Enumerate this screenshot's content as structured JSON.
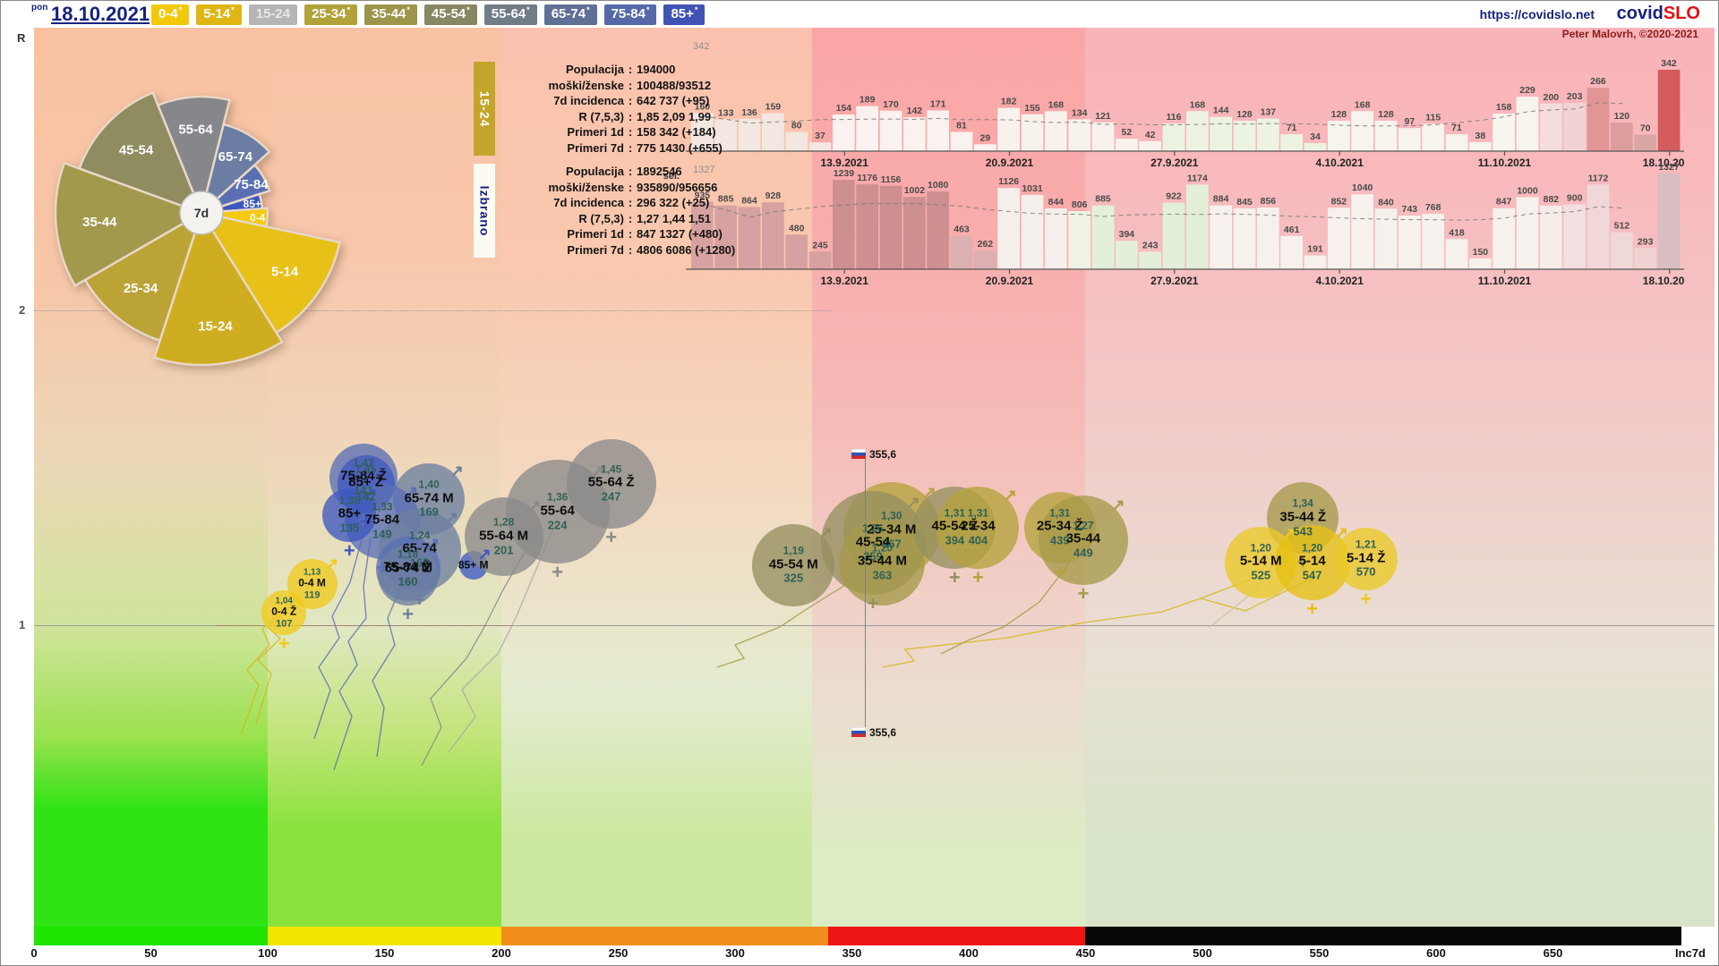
{
  "header": {
    "weekday": "pon",
    "date": "18.10.2021",
    "url": "https://covidslo.net",
    "logo_covid": "covid",
    "logo_slo": "SLO",
    "credit": "Peter Malovrh, ©2020-2021",
    "buttons": [
      {
        "label": "0-4",
        "star": true,
        "bg": "#f2c80c",
        "fg": "#ffffff",
        "selected": false
      },
      {
        "label": "5-14",
        "star": true,
        "bg": "#dfb614",
        "fg": "#ffffff",
        "selected": false
      },
      {
        "label": "15-24",
        "star": false,
        "bg": "#b5b5b5",
        "fg": "#e8e8e8",
        "selected": true
      },
      {
        "label": "25-34",
        "star": true,
        "bg": "#b1a23a",
        "fg": "#ffffff",
        "selected": false
      },
      {
        "label": "35-44",
        "star": true,
        "bg": "#9d9549",
        "fg": "#ffffff",
        "selected": false
      },
      {
        "label": "45-54",
        "star": true,
        "bg": "#878763",
        "fg": "#ffffff",
        "selected": false
      },
      {
        "label": "55-64",
        "star": true,
        "bg": "#717c86",
        "fg": "#ffffff",
        "selected": false
      },
      {
        "label": "65-74",
        "star": true,
        "bg": "#5f7097",
        "fg": "#ffffff",
        "selected": false
      },
      {
        "label": "75-84",
        "star": true,
        "bg": "#5569a8",
        "fg": "#ffffff",
        "selected": false
      },
      {
        "label": "85+",
        "star": true,
        "bg": "#4053b5",
        "fg": "#ffffff",
        "selected": false
      }
    ]
  },
  "axes": {
    "y_label": "R",
    "y_ticks": [
      "2",
      "1"
    ],
    "x_unit_label": "Inc7d",
    "x_ticks": [
      0,
      50,
      100,
      150,
      200,
      250,
      300,
      350,
      400,
      450,
      500,
      550,
      600,
      650
    ]
  },
  "info_panels": [
    {
      "tag": "15-24",
      "tag_bg": "#c3a52c",
      "tag_fg": "#ffffff",
      "rows": [
        {
          "label": "Populacija",
          "value": "194000"
        },
        {
          "label": "moški/ženske",
          "value": "100488/93512"
        },
        {
          "label": "7d incidenca",
          "value": "642 737 (+95)"
        },
        {
          "label": "R (7,5,3)",
          "value": "1,85 2,09 1,99"
        },
        {
          "label": "Primeri 1d",
          "value": "158 342 (+184)"
        },
        {
          "label": "Primeri 7d",
          "value": "775 1430 (+655)"
        }
      ]
    },
    {
      "tag": "Izbrano",
      "tag_bg": "#fbfbf2",
      "tag_fg": "#16227e",
      "rows": [
        {
          "label": "Populacija",
          "value": "1892546"
        },
        {
          "label": "moški/ženske",
          "value": "935890/956656"
        },
        {
          "label": "7d incidenca",
          "value": "296 322 (+25)"
        },
        {
          "label": "R (7,5,3)",
          "value": "1,27 1,44 1,51"
        },
        {
          "label": "Primeri 1d",
          "value": "847 1327 (+480)"
        },
        {
          "label": "Primeri 7d",
          "value": "4806 6086 (+1280)"
        }
      ]
    }
  ],
  "fan": {
    "center_label": "7d",
    "wedges": [
      {
        "label": "55-64",
        "a0": -22,
        "a1": 14,
        "r": 130,
        "lf": 0.72,
        "color": "#85878a"
      },
      {
        "label": "65-74",
        "a0": 14,
        "a1": 48,
        "r": 102,
        "lf": 0.72,
        "color": "#6b7da3"
      },
      {
        "label": "75-84",
        "a0": 48,
        "a1": 72,
        "r": 80,
        "lf": 0.8,
        "color": "#5a6fb3"
      },
      {
        "label": "85+",
        "a0": 72,
        "a1": 86,
        "r": 68,
        "lf": 0.85,
        "color": "#3d57c0"
      },
      {
        "label": "0-4",
        "a0": 86,
        "a1": 102,
        "r": 74,
        "lf": 0.85,
        "color": "#f5c90d"
      },
      {
        "label": "5-14",
        "a0": 102,
        "a1": 148,
        "r": 158,
        "lf": 0.72,
        "color": "#e7c117"
      },
      {
        "label": "15-24",
        "a0": 148,
        "a1": 198,
        "r": 170,
        "lf": 0.75,
        "color": "#cfad20"
      },
      {
        "label": "25-34",
        "a0": 198,
        "a1": 240,
        "r": 150,
        "lf": 0.72,
        "color": "#bba336"
      },
      {
        "label": "35-44",
        "a0": 240,
        "a1": 290,
        "r": 163,
        "lf": 0.7,
        "color": "#a3994d"
      },
      {
        "label": "45-54",
        "a0": 290,
        "a1": 338,
        "r": 145,
        "lf": 0.7,
        "color": "#8f8c60"
      }
    ]
  },
  "chart_data": [
    {
      "type": "bar",
      "name": "daily-cases-15-24",
      "max_label": "342",
      "dates": [
        "13.9.2021",
        "20.9.2021",
        "27.9.2021",
        "4.10.2021",
        "11.10.2021",
        "18.10.2021"
      ],
      "values": [
        160,
        133,
        136,
        159,
        80,
        37,
        154,
        189,
        170,
        142,
        171,
        81,
        29,
        182,
        155,
        168,
        134,
        121,
        52,
        42,
        116,
        168,
        144,
        128,
        137,
        71,
        34,
        128,
        168,
        128,
        97,
        115,
        71,
        38,
        158,
        229,
        200,
        203,
        266,
        120,
        70,
        342
      ],
      "colors": [
        "#f2e7e1",
        "#f2e7e1",
        "#f2e7e1",
        "#f2e7e1",
        "#f2e7e1",
        "#f2e7e1",
        "#f9f2ee",
        "#f9f2ee",
        "#f9f2ee",
        "#f9f2ee",
        "#f9f2ee",
        "#f9f2ee",
        "#f9f2ee",
        "#f8f2ec",
        "#f8f2ec",
        "#f8f2ec",
        "#f8f2ec",
        "#f8f2ec",
        "#f8f2ec",
        "#f8f2ec",
        "#edf3e3",
        "#edf3e3",
        "#edf3e3",
        "#edf3e3",
        "#edf3e3",
        "#edf3e3",
        "#edf3e3",
        "#f7f3ed",
        "#f7f3ed",
        "#f7f3ed",
        "#f7f3ed",
        "#f7f3ed",
        "#f7f3ed",
        "#f7f3ed",
        "#f8f4ee",
        "#f7f3ed",
        "#f4dddb",
        "#f1d3d3",
        "#e29595",
        "#de9d9d",
        "#daa5a5",
        "#d35b5b"
      ]
    },
    {
      "type": "bar",
      "name": "daily-cases-selected",
      "max_label": "1327",
      "note": "sel.",
      "dates": [
        "13.9.2021",
        "20.9.2021",
        "27.9.2021",
        "4.10.2021",
        "11.10.2021",
        "18.10.2021"
      ],
      "values": [
        935,
        885,
        864,
        928,
        480,
        245,
        1239,
        1176,
        1156,
        1002,
        1080,
        463,
        262,
        1126,
        1031,
        844,
        806,
        885,
        394,
        243,
        922,
        1174,
        884,
        845,
        856,
        461,
        191,
        852,
        1040,
        840,
        743,
        768,
        418,
        150,
        847,
        1000,
        882,
        900,
        1172,
        512,
        293,
        1327
      ],
      "colors": [
        "#d7a1a1",
        "#d7a1a1",
        "#d7a1a1",
        "#d7a1a1",
        "#d7a1a1",
        "#d7a1a1",
        "#cd8f8f",
        "#cd8f8f",
        "#cd8f8f",
        "#cd8f8f",
        "#cd8f8f",
        "#dcb0b0",
        "#dcb0b0",
        "#f5efeb",
        "#f5efeb",
        "#f5efeb",
        "#f0f2e6",
        "#e4efda",
        "#e4efda",
        "#e4efda",
        "#e4efda",
        "#e4efda",
        "#f6f1ec",
        "#f6f1ec",
        "#f6f1ec",
        "#f6f1ec",
        "#f6f1ec",
        "#f6f1ec",
        "#f6f1ec",
        "#f6f1ec",
        "#f6f1ec",
        "#f6f1ec",
        "#f6f1ec",
        "#f6f1ec",
        "#f6f1ec",
        "#f6f1ec",
        "#f5ece9",
        "#f2dfdf",
        "#f1d8d8",
        "#f1d8d8",
        "#f0d4d4",
        "#d8bdc1"
      ]
    },
    {
      "type": "scatter",
      "name": "r-vs-7d-incidence",
      "xlabel": "Inc7d",
      "ylabel": "R",
      "reference_marker": {
        "label": "355,6",
        "inc": 355.6
      },
      "bubbles": [
        {
          "name": "75-84 Ž",
          "r": "1,47",
          "value": "141",
          "r_num": 1.47,
          "inc": 141,
          "radius": 38,
          "color": "#5a70b6",
          "marker": "f"
        },
        {
          "name": "85+ Ž",
          "r": "1,45",
          "value": "142",
          "r_num": 1.45,
          "inc": 142,
          "radius": 32,
          "color": "#4058bf",
          "marker": "f"
        },
        {
          "name": "65-74 M",
          "r": "1,40",
          "value": "169",
          "r_num": 1.4,
          "inc": 169,
          "radius": 40,
          "color": "#6d7fa0",
          "marker": "m"
        },
        {
          "name": "75-84",
          "r": "1,33",
          "value": "149",
          "r_num": 1.33,
          "inc": 149,
          "radius": 42,
          "color": "#5a70b6",
          "marker": "mf"
        },
        {
          "name": "85+",
          "r": "1,35",
          "value": "135",
          "r_num": 1.35,
          "inc": 135,
          "radius": 30,
          "color": "#3f57c0",
          "marker": "mf"
        },
        {
          "name": "65-74",
          "r": "1,24",
          "value": "165",
          "r_num": 1.24,
          "inc": 165,
          "radius": 46,
          "color": "#6d7fa0",
          "marker": "mf"
        },
        {
          "name": "75-84 M",
          "r": "1,18",
          "value": "160",
          "r_num": 1.18,
          "inc": 160,
          "radius": 36,
          "color": "#5a70b6",
          "marker": "m"
        },
        {
          "name": "65-74 Ž",
          "r": "",
          "value": "160",
          "r_num": 1.16,
          "inc": 160,
          "radius": 34,
          "color": "#6d7fa0",
          "marker": "f"
        },
        {
          "name": "85+ M",
          "r": "",
          "value": "",
          "r_num": 1.19,
          "inc": 188,
          "radius": 16,
          "color": "#3f57c0",
          "marker": "m",
          "small": true
        },
        {
          "name": "55-64 M",
          "r": "1,28",
          "value": "201",
          "r_num": 1.28,
          "inc": 201,
          "radius": 44,
          "color": "#8a8a8a",
          "marker": "m"
        },
        {
          "name": "55-64",
          "r": "1,36",
          "value": "224",
          "r_num": 1.36,
          "inc": 224,
          "radius": 58,
          "color": "#8a8a8a",
          "marker": "mf"
        },
        {
          "name": "55-64 Ž",
          "r": "1,45",
          "value": "247",
          "r_num": 1.45,
          "inc": 247,
          "radius": 50,
          "color": "#8a8a8a",
          "marker": "f"
        },
        {
          "name": "25-34 M",
          "r": "1,30",
          "value": "367",
          "r_num": 1.3,
          "inc": 367,
          "radius": 54,
          "color": "#b5a33c",
          "marker": "m"
        },
        {
          "name": "45-54 M",
          "r": "1,19",
          "value": "325",
          "r_num": 1.19,
          "inc": 325,
          "radius": 46,
          "color": "#95905f",
          "marker": "m"
        },
        {
          "name": "45-54",
          "r": "1,26",
          "value": "359",
          "r_num": 1.26,
          "inc": 359,
          "radius": 58,
          "color": "#95905f",
          "marker": "mf"
        },
        {
          "name": "35-44 M",
          "r": "1,20",
          "value": "363",
          "r_num": 1.2,
          "inc": 363,
          "radius": 48,
          "color": "#a59a4a",
          "marker": "m"
        },
        {
          "name": "45-54 Ž",
          "r": "1,31",
          "value": "394",
          "r_num": 1.31,
          "inc": 394,
          "radius": 46,
          "color": "#95905f",
          "marker": "f"
        },
        {
          "name": "25-34",
          "r": "1,31",
          "value": "404",
          "r_num": 1.31,
          "inc": 404,
          "radius": 46,
          "color": "#b5a33c",
          "marker": "mf"
        },
        {
          "name": "25-34 Ž",
          "r": "1,31",
          "value": "439",
          "r_num": 1.31,
          "inc": 439,
          "radius": 40,
          "color": "#b5a33c",
          "marker": "f"
        },
        {
          "name": "35-44",
          "r": "1,27",
          "value": "449",
          "r_num": 1.27,
          "inc": 449,
          "radius": 50,
          "color": "#a59a4a",
          "marker": "mf"
        },
        {
          "name": "35-44 Ž",
          "r": "1,34",
          "value": "543",
          "r_num": 1.34,
          "inc": 543,
          "radius": 40,
          "color": "#a59a4a",
          "marker": "f"
        },
        {
          "name": "5-14 M",
          "r": "1,20",
          "value": "525",
          "r_num": 1.2,
          "inc": 525,
          "radius": 40,
          "color": "#eac926",
          "marker": "m"
        },
        {
          "name": "5-14",
          "r": "1,20",
          "value": "547",
          "r_num": 1.2,
          "inc": 547,
          "radius": 42,
          "color": "#e6c013",
          "marker": "mf"
        },
        {
          "name": "5-14 Ž",
          "r": "1,21",
          "value": "570",
          "r_num": 1.21,
          "inc": 570,
          "radius": 35,
          "color": "#eac926",
          "marker": "f"
        },
        {
          "name": "0-4 M",
          "r": "1,13",
          "value": "119",
          "r_num": 1.13,
          "inc": 119,
          "radius": 28,
          "color": "#f0ca1e",
          "marker": "m",
          "small": true
        },
        {
          "name": "0-4 Ž",
          "r": "1,04",
          "value": "107",
          "r_num": 1.04,
          "inc": 107,
          "radius": 25,
          "color": "#f0ca1e",
          "marker": "f",
          "small": true
        }
      ]
    }
  ],
  "colorbar": {
    "segments": [
      {
        "from": 0,
        "to": 100,
        "color": "#1ee400"
      },
      {
        "from": 100,
        "to": 200,
        "color": "#f2e600"
      },
      {
        "from": 200,
        "to": 340,
        "color": "#f08e1c"
      },
      {
        "from": 340,
        "to": 450,
        "color": "#ed1515"
      },
      {
        "from": 450,
        "to": 705,
        "color": "#060606"
      }
    ]
  }
}
